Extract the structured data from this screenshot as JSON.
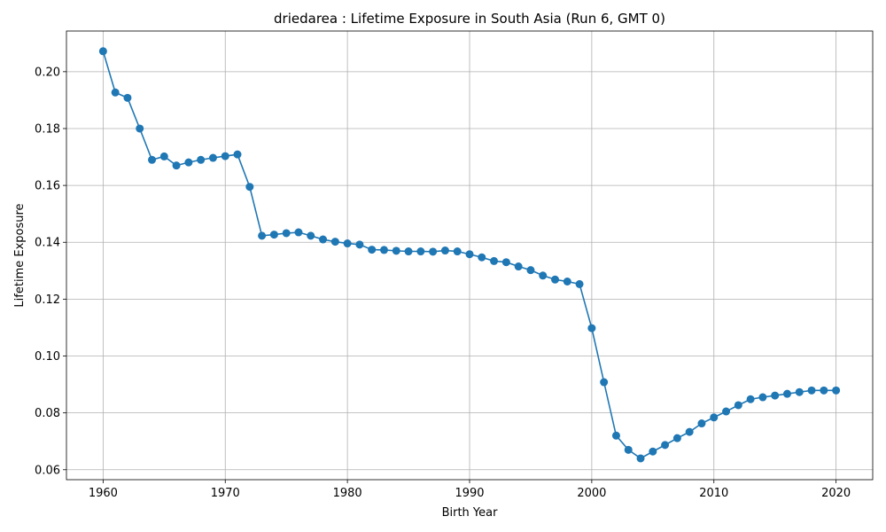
{
  "chart_data": {
    "type": "line",
    "title": "driedarea : Lifetime Exposure in South Asia (Run 6, GMT 0)",
    "xlabel": "Birth Year",
    "ylabel": "Lifetime Exposure",
    "xlim": [
      1957,
      2023
    ],
    "ylim": [
      0.0565,
      0.2143
    ],
    "xticks": [
      1960,
      1970,
      1980,
      1990,
      2000,
      2010,
      2020
    ],
    "yticks": [
      0.06,
      0.08,
      0.1,
      0.12,
      0.14,
      0.16,
      0.18,
      0.2
    ],
    "xtick_labels": [
      "1960",
      "1970",
      "1980",
      "1990",
      "2000",
      "2010",
      "2020"
    ],
    "ytick_labels": [
      "0.06",
      "0.08",
      "0.10",
      "0.12",
      "0.14",
      "0.16",
      "0.18",
      "0.20"
    ],
    "grid": true,
    "marker": "circle",
    "series": [
      {
        "color": "#1f77b4",
        "x": [
          1960,
          1961,
          1962,
          1963,
          1964,
          1965,
          1966,
          1967,
          1968,
          1969,
          1970,
          1971,
          1972,
          1973,
          1974,
          1975,
          1976,
          1977,
          1978,
          1979,
          1980,
          1981,
          1982,
          1983,
          1984,
          1985,
          1986,
          1987,
          1988,
          1989,
          1990,
          1991,
          1992,
          1993,
          1994,
          1995,
          1996,
          1997,
          1998,
          1999,
          2000,
          2001,
          2002,
          2003,
          2004,
          2005,
          2006,
          2007,
          2008,
          2009,
          2010,
          2011,
          2012,
          2013,
          2014,
          2015,
          2016,
          2017,
          2018,
          2019,
          2020
        ],
        "values": [
          0.2072,
          0.1927,
          0.1908,
          0.18,
          0.169,
          0.1702,
          0.167,
          0.1681,
          0.169,
          0.1697,
          0.1703,
          0.1709,
          0.1595,
          0.1423,
          0.1427,
          0.1432,
          0.1435,
          0.1423,
          0.141,
          0.1402,
          0.1396,
          0.1392,
          0.1374,
          0.1373,
          0.137,
          0.1368,
          0.1368,
          0.1367,
          0.1371,
          0.1368,
          0.1358,
          0.1347,
          0.1334,
          0.133,
          0.1315,
          0.1302,
          0.1283,
          0.1269,
          0.1262,
          0.1253,
          0.1098,
          0.0908,
          0.072,
          0.067,
          0.064,
          0.0664,
          0.0687,
          0.0711,
          0.0733,
          0.0763,
          0.0784,
          0.0805,
          0.0827,
          0.0848,
          0.0855,
          0.0861,
          0.0867,
          0.0873,
          0.0879,
          0.0879,
          0.0879
        ]
      }
    ]
  }
}
